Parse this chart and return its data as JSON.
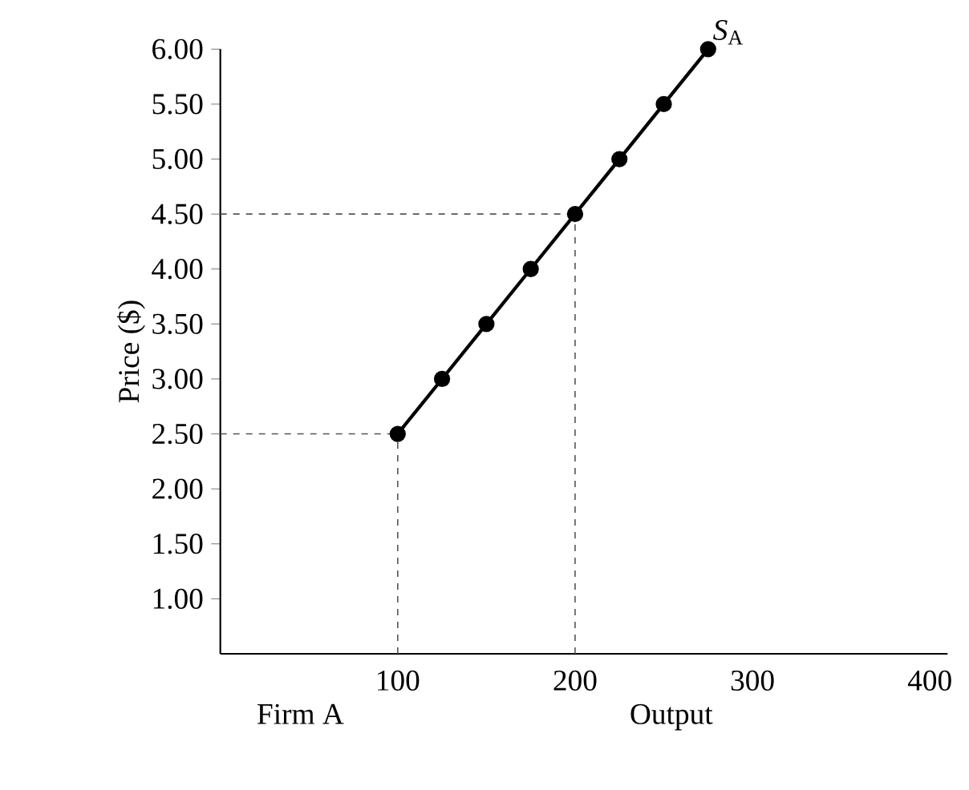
{
  "chart_data": {
    "type": "line",
    "xlabel": "Output",
    "ylabel": "Price ($)",
    "annotations": [
      "Firm A"
    ],
    "xlim": [
      0,
      410
    ],
    "ylim": [
      0.5,
      6.0
    ],
    "xticks": [
      100,
      200,
      300,
      400
    ],
    "yticks": [
      {
        "value": 1,
        "label": "1.00"
      },
      {
        "value": 1.5,
        "label": "1.50"
      },
      {
        "value": 2,
        "label": "2.00"
      },
      {
        "value": 2.5,
        "label": "2.50"
      },
      {
        "value": 3,
        "label": "3.00"
      },
      {
        "value": 3.5,
        "label": "3.50"
      },
      {
        "value": 4,
        "label": "4.00"
      },
      {
        "value": 4.5,
        "label": "4.50"
      },
      {
        "value": 5,
        "label": "5.00"
      },
      {
        "value": 5.5,
        "label": "5.50"
      },
      {
        "value": 6,
        "label": "6.00"
      }
    ],
    "series": [
      {
        "name": "*S*$_{A}$",
        "color": "#000000",
        "x": [
          100,
          125,
          150,
          175,
          200,
          225,
          250,
          275
        ],
        "values": [
          2.5,
          3.0,
          3.5,
          4.0,
          4.5,
          5.0,
          5.5,
          6.0
        ]
      }
    ],
    "marker": "circle",
    "line_style": "solid",
    "grid": false,
    "legend": false,
    "ref_lines": [
      {
        "axis": "x",
        "value": 100,
        "color": "#555555",
        "line_style": "dashed"
      },
      {
        "axis": "y",
        "value": 2.5,
        "color": "#555555",
        "line_style": "dashed"
      },
      {
        "axis": "x",
        "value": 200,
        "color": "#555555",
        "line_style": "dashed"
      },
      {
        "axis": "y",
        "value": 4.5,
        "color": "#555555",
        "line_style": "dashed"
      }
    ]
  }
}
